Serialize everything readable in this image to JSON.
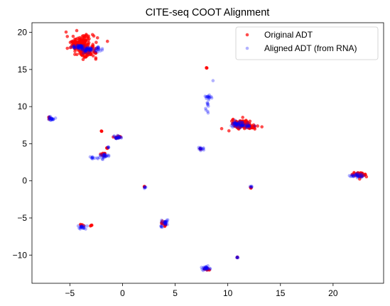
{
  "chart_data": {
    "type": "scatter",
    "title": "CITE-seq COOT Alignment",
    "xlabel": "",
    "ylabel": "",
    "xlim": [
      -8.6,
      24.8
    ],
    "ylim": [
      -13.8,
      21.3
    ],
    "xticks": [
      -5,
      0,
      5,
      10,
      15,
      20
    ],
    "yticks": [
      -10,
      -5,
      0,
      5,
      10,
      15,
      20
    ],
    "grid": false,
    "legend_position": "top-right",
    "series": [
      {
        "name": "Original ADT",
        "color": "#ff0000",
        "alpha": 0.7,
        "clusters": [
          {
            "cx": -4.0,
            "cy": 18.6,
            "rx": 1.2,
            "ry": 0.9,
            "n": 140
          },
          {
            "cx": -3.4,
            "cy": 17.3,
            "rx": 0.9,
            "ry": 0.7,
            "n": 70
          },
          {
            "cx": 11.3,
            "cy": 7.7,
            "rx": 0.8,
            "ry": 0.5,
            "n": 90
          },
          {
            "cx": 12.2,
            "cy": 7.3,
            "rx": 0.6,
            "ry": 0.25,
            "n": 30
          },
          {
            "cx": 22.6,
            "cy": 0.8,
            "rx": 0.6,
            "ry": 0.25,
            "n": 60
          },
          {
            "cx": 8.0,
            "cy": 15.2,
            "rx": 0.05,
            "ry": 0.05,
            "n": 3
          },
          {
            "cx": -2.0,
            "cy": 6.7,
            "rx": 0.05,
            "ry": 0.05,
            "n": 3
          },
          {
            "cx": -1.5,
            "cy": 4.4,
            "rx": 0.1,
            "ry": 0.1,
            "n": 4
          },
          {
            "cx": -1.8,
            "cy": 3.5,
            "rx": 0.3,
            "ry": 0.35,
            "n": 12
          },
          {
            "cx": -0.5,
            "cy": 5.9,
            "rx": 0.3,
            "ry": 0.3,
            "n": 10
          },
          {
            "cx": -3.0,
            "cy": -6.0,
            "rx": 0.08,
            "ry": 0.08,
            "n": 4
          },
          {
            "cx": 4.0,
            "cy": -5.8,
            "rx": 0.3,
            "ry": 0.3,
            "n": 12
          },
          {
            "cx": 2.1,
            "cy": -0.8,
            "rx": 0.05,
            "ry": 0.08,
            "n": 3
          },
          {
            "cx": -3.9,
            "cy": -6.0,
            "rx": 0.2,
            "ry": 0.15,
            "n": 6
          },
          {
            "cx": 12.2,
            "cy": -0.9,
            "rx": 0.05,
            "ry": 0.05,
            "n": 3
          },
          {
            "cx": 8.0,
            "cy": -11.9,
            "rx": 0.3,
            "ry": 0.2,
            "n": 8
          },
          {
            "cx": 10.9,
            "cy": -10.3,
            "rx": 0.05,
            "ry": 0.05,
            "n": 3
          },
          {
            "cx": -6.9,
            "cy": 8.5,
            "rx": 0.15,
            "ry": 0.15,
            "n": 4
          },
          {
            "cx": 7.4,
            "cy": 4.3,
            "rx": 0.1,
            "ry": 0.1,
            "n": 3
          }
        ]
      },
      {
        "name": "Aligned ADT (from RNA)",
        "color": "#0000ff",
        "alpha": 0.3,
        "clusters": [
          {
            "cx": -4.2,
            "cy": 18.0,
            "rx": 0.5,
            "ry": 0.3,
            "n": 40
          },
          {
            "cx": -3.3,
            "cy": 17.7,
            "rx": 0.6,
            "ry": 0.35,
            "n": 40
          },
          {
            "cx": -2.3,
            "cy": 17.8,
            "rx": 0.3,
            "ry": 0.4,
            "n": 15
          },
          {
            "cx": 8.2,
            "cy": 11.3,
            "rx": 0.3,
            "ry": 0.3,
            "n": 14
          },
          {
            "cx": 8.1,
            "cy": 9.9,
            "rx": 0.15,
            "ry": 0.9,
            "n": 10
          },
          {
            "cx": 8.6,
            "cy": 13.5,
            "rx": 0.02,
            "ry": 0.02,
            "n": 1
          },
          {
            "cx": 11.0,
            "cy": 7.6,
            "rx": 0.6,
            "ry": 0.35,
            "n": 50
          },
          {
            "cx": 12.0,
            "cy": 7.4,
            "rx": 0.4,
            "ry": 0.2,
            "n": 14
          },
          {
            "cx": -6.8,
            "cy": 8.4,
            "rx": 0.3,
            "ry": 0.2,
            "n": 20
          },
          {
            "cx": -0.5,
            "cy": 5.9,
            "rx": 0.35,
            "ry": 0.35,
            "n": 20
          },
          {
            "cx": -1.8,
            "cy": 3.3,
            "rx": 0.45,
            "ry": 0.35,
            "n": 25
          },
          {
            "cx": -2.9,
            "cy": 3.1,
            "rx": 0.2,
            "ry": 0.15,
            "n": 8
          },
          {
            "cx": -1.4,
            "cy": 4.5,
            "rx": 0.1,
            "ry": 0.1,
            "n": 4
          },
          {
            "cx": 7.5,
            "cy": 4.3,
            "rx": 0.25,
            "ry": 0.2,
            "n": 12
          },
          {
            "cx": 2.1,
            "cy": -0.9,
            "rx": 0.1,
            "ry": 0.2,
            "n": 5
          },
          {
            "cx": 12.2,
            "cy": -0.8,
            "rx": 0.1,
            "ry": 0.1,
            "n": 5
          },
          {
            "cx": 22.2,
            "cy": 0.7,
            "rx": 0.6,
            "ry": 0.3,
            "n": 30
          },
          {
            "cx": -3.8,
            "cy": -6.2,
            "rx": 0.35,
            "ry": 0.2,
            "n": 20
          },
          {
            "cx": 4.0,
            "cy": -5.6,
            "rx": 0.3,
            "ry": 0.35,
            "n": 20
          },
          {
            "cx": 3.7,
            "cy": -6.2,
            "rx": 0.15,
            "ry": 0.15,
            "n": 5
          },
          {
            "cx": 8.0,
            "cy": -11.8,
            "rx": 0.4,
            "ry": 0.25,
            "n": 25
          },
          {
            "cx": 10.9,
            "cy": -10.3,
            "rx": 0.1,
            "ry": 0.1,
            "n": 5
          }
        ]
      }
    ]
  }
}
